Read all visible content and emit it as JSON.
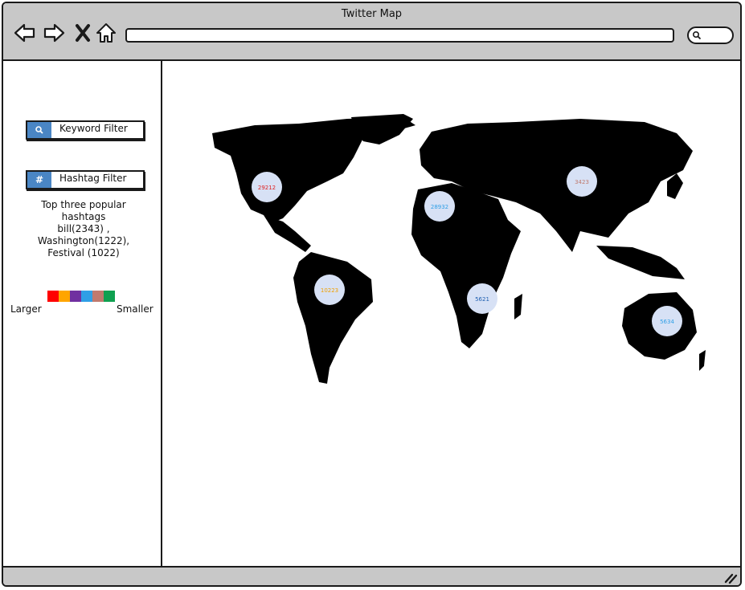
{
  "window": {
    "title": "Twitter Map"
  },
  "toolbar": {
    "back_icon": "back-arrow-icon",
    "forward_icon": "forward-arrow-icon",
    "stop_icon": "close-icon",
    "home_icon": "home-icon",
    "address_value": "",
    "search_icon": "search-icon"
  },
  "sidebar": {
    "keyword_filter": {
      "label": "Keyword Filter",
      "icon": "search-icon"
    },
    "hashtag_filter": {
      "label": "Hashtag Filter",
      "icon": "hashtag-icon",
      "icon_glyph": "#"
    },
    "top_hashtags": {
      "lines": [
        "Top three popular",
        "hashtags",
        "bill(2343) ,",
        "Washington(1222),",
        "Festival (1022)"
      ]
    },
    "scale": {
      "colors": [
        "#ff0000",
        "#ffa500",
        "#7030a0",
        "#2f9fe6",
        "#c07a6e",
        "#0fa050"
      ],
      "larger_label": "Larger",
      "smaller_label": "Smaller"
    }
  },
  "map": {
    "markers": [
      {
        "label": "29212",
        "color": "#e02020",
        "region": "north-america"
      },
      {
        "label": "28932",
        "color": "#2f9fe6",
        "region": "north-africa"
      },
      {
        "label": "3423",
        "color": "#c07a6e",
        "region": "asia"
      },
      {
        "label": "10223",
        "color": "#f0a000",
        "region": "south-america"
      },
      {
        "label": "5621",
        "color": "#1f5fb0",
        "region": "southern-africa"
      },
      {
        "label": "5634",
        "color": "#2f9fe6",
        "region": "australia"
      }
    ],
    "marker_fill": "#d7e1f5"
  }
}
